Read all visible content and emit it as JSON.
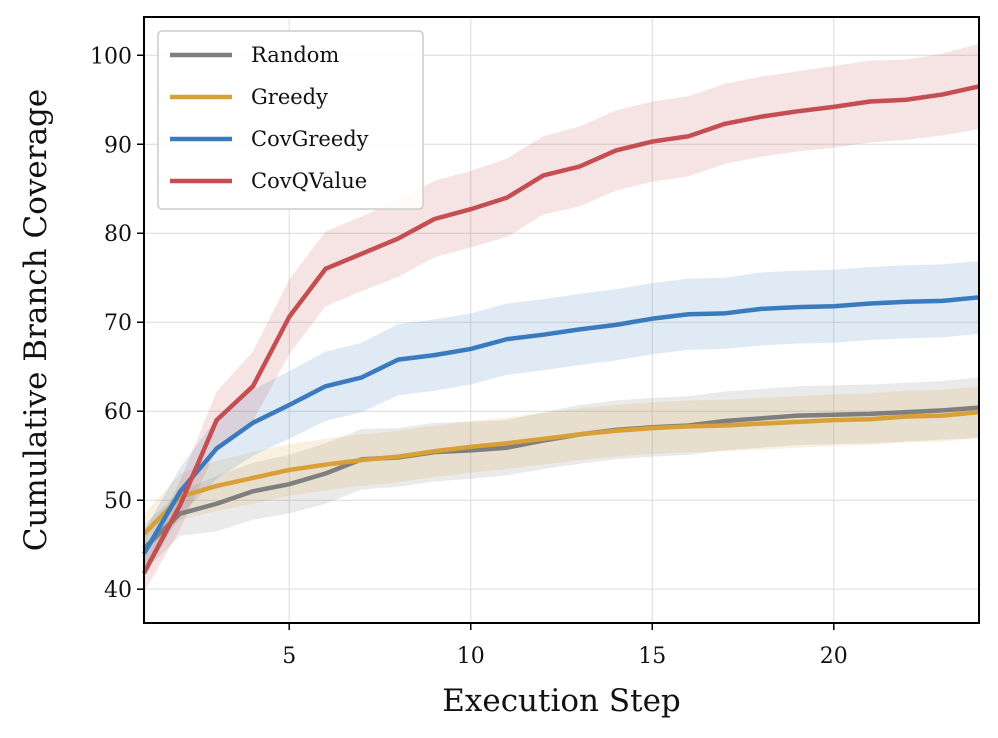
{
  "chart_data": {
    "type": "line",
    "xlabel": "Execution Step",
    "ylabel": "Cumulative Branch Coverage",
    "xlim": [
      1,
      24
    ],
    "ylim": [
      36.2,
      104.3
    ],
    "xticks": [
      5,
      10,
      15,
      20
    ],
    "yticks": [
      40,
      50,
      60,
      70,
      80,
      90,
      100
    ],
    "grid": true,
    "legend_position": "top-left",
    "x": [
      1,
      2,
      3,
      4,
      5,
      6,
      7,
      8,
      9,
      10,
      11,
      12,
      13,
      14,
      15,
      16,
      17,
      18,
      19,
      20,
      21,
      22,
      23,
      24
    ],
    "series": [
      {
        "name": "Random",
        "color": "#7f7f7f",
        "values": [
          44.6,
          48.5,
          49.6,
          51.0,
          51.8,
          53.0,
          54.6,
          54.8,
          55.4,
          55.6,
          55.9,
          56.7,
          57.4,
          57.9,
          58.2,
          58.4,
          58.9,
          59.2,
          59.5,
          59.6,
          59.7,
          59.9,
          60.1,
          60.4
        ],
        "lower": [
          42.0,
          46.0,
          46.5,
          47.8,
          48.5,
          49.6,
          51.2,
          51.5,
          52.1,
          52.4,
          52.8,
          53.5,
          54.1,
          54.6,
          54.9,
          55.1,
          55.6,
          55.9,
          56.2,
          56.3,
          56.4,
          56.6,
          56.8,
          57.0
        ],
        "upper": [
          47.2,
          51.0,
          52.7,
          54.2,
          55.1,
          56.4,
          58.0,
          58.1,
          58.7,
          58.8,
          59.0,
          59.9,
          60.7,
          61.2,
          61.5,
          61.7,
          62.2,
          62.5,
          62.8,
          62.9,
          63.0,
          63.2,
          63.4,
          63.8
        ]
      },
      {
        "name": "Greedy",
        "color": "#d9a038",
        "values": [
          46.2,
          50.4,
          51.6,
          52.5,
          53.4,
          54.0,
          54.5,
          54.9,
          55.5,
          56.0,
          56.4,
          56.9,
          57.4,
          57.8,
          58.1,
          58.3,
          58.4,
          58.6,
          58.8,
          59.0,
          59.1,
          59.4,
          59.5,
          59.9
        ],
        "lower": [
          44.0,
          47.8,
          48.8,
          49.6,
          50.5,
          51.1,
          51.6,
          52.0,
          52.6,
          53.1,
          53.5,
          54.0,
          54.5,
          54.9,
          55.2,
          55.4,
          55.5,
          55.7,
          55.9,
          56.1,
          56.2,
          56.5,
          56.6,
          57.0
        ],
        "upper": [
          48.4,
          53.0,
          54.4,
          55.4,
          56.3,
          56.9,
          57.4,
          57.8,
          58.4,
          58.9,
          59.3,
          59.8,
          60.3,
          60.7,
          61.0,
          61.2,
          61.3,
          61.5,
          61.7,
          61.9,
          62.0,
          62.3,
          62.4,
          62.8
        ]
      },
      {
        "name": "CovGreedy",
        "color": "#3a7bbf",
        "values": [
          44.0,
          51.0,
          55.8,
          58.7,
          60.7,
          62.8,
          63.8,
          65.8,
          66.3,
          67.0,
          68.1,
          68.6,
          69.2,
          69.7,
          70.4,
          70.9,
          71.0,
          71.5,
          71.7,
          71.8,
          72.1,
          72.3,
          72.4,
          72.8
        ],
        "lower": [
          41.5,
          48.3,
          52.4,
          55.0,
          56.9,
          58.9,
          59.9,
          61.8,
          62.3,
          63.0,
          64.1,
          64.6,
          65.2,
          65.7,
          66.4,
          66.9,
          67.0,
          67.4,
          67.6,
          67.7,
          68.0,
          68.2,
          68.3,
          68.7
        ],
        "upper": [
          46.5,
          53.7,
          59.2,
          62.4,
          64.5,
          66.7,
          67.7,
          69.8,
          70.3,
          71.0,
          72.1,
          72.6,
          73.2,
          73.7,
          74.4,
          74.9,
          75.0,
          75.6,
          75.8,
          75.9,
          76.2,
          76.4,
          76.5,
          76.9
        ]
      },
      {
        "name": "CovQValue",
        "color": "#c44e52",
        "values": [
          41.8,
          49.5,
          59.0,
          62.8,
          70.6,
          76.0,
          77.7,
          79.4,
          81.6,
          82.7,
          84.0,
          86.5,
          87.5,
          89.3,
          90.3,
          90.9,
          92.3,
          93.1,
          93.7,
          94.2,
          94.8,
          95.0,
          95.6,
          96.5
        ],
        "lower": [
          39.6,
          46.8,
          55.8,
          58.9,
          66.4,
          71.8,
          73.5,
          75.1,
          77.3,
          78.4,
          79.6,
          82.1,
          83.0,
          84.8,
          85.8,
          86.4,
          87.8,
          88.6,
          89.2,
          89.6,
          90.2,
          90.5,
          91.0,
          91.7
        ],
        "upper": [
          44.0,
          52.2,
          62.2,
          66.7,
          74.8,
          80.2,
          81.9,
          83.7,
          85.9,
          87.0,
          88.4,
          90.9,
          92.0,
          93.8,
          94.8,
          95.4,
          96.8,
          97.6,
          98.2,
          98.8,
          99.4,
          99.5,
          100.2,
          101.3
        ]
      }
    ]
  }
}
